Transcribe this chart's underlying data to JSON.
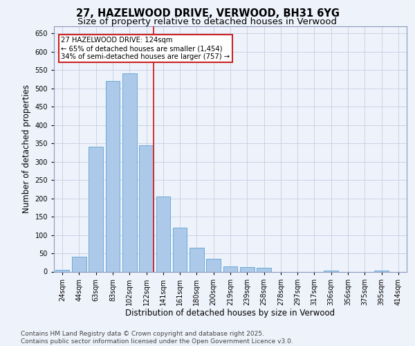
{
  "title": "27, HAZELWOOD DRIVE, VERWOOD, BH31 6YG",
  "subtitle": "Size of property relative to detached houses in Verwood",
  "xlabel": "Distribution of detached houses by size in Verwood",
  "ylabel": "Number of detached properties",
  "bins": [
    "24sqm",
    "44sqm",
    "63sqm",
    "83sqm",
    "102sqm",
    "122sqm",
    "141sqm",
    "161sqm",
    "180sqm",
    "200sqm",
    "219sqm",
    "239sqm",
    "258sqm",
    "278sqm",
    "297sqm",
    "317sqm",
    "336sqm",
    "356sqm",
    "375sqm",
    "395sqm",
    "414sqm"
  ],
  "values": [
    5,
    40,
    340,
    520,
    540,
    345,
    205,
    120,
    65,
    35,
    15,
    12,
    10,
    0,
    0,
    0,
    2,
    0,
    0,
    2,
    0
  ],
  "bar_color": "#adc9ea",
  "bar_edge_color": "#6aaad4",
  "property_bin_index": 5,
  "property_sqm": 124,
  "vline_color": "#cc2222",
  "annotation_text": "27 HAZELWOOD DRIVE: 124sqm\n← 65% of detached houses are smaller (1,454)\n34% of semi-detached houses are larger (757) →",
  "annotation_box_facecolor": "#ffffff",
  "annotation_box_edgecolor": "#cc2222",
  "ylim": [
    0,
    670
  ],
  "yticks": [
    0,
    50,
    100,
    150,
    200,
    250,
    300,
    350,
    400,
    450,
    500,
    550,
    600,
    650
  ],
  "background_color": "#eef2fb",
  "grid_color": "#c5cde0",
  "footer": "Contains HM Land Registry data © Crown copyright and database right 2025.\nContains public sector information licensed under the Open Government Licence v3.0.",
  "title_fontsize": 10.5,
  "subtitle_fontsize": 9.5,
  "axis_label_fontsize": 8.5,
  "tick_fontsize": 7,
  "footer_fontsize": 6.5,
  "num_bins": 21
}
